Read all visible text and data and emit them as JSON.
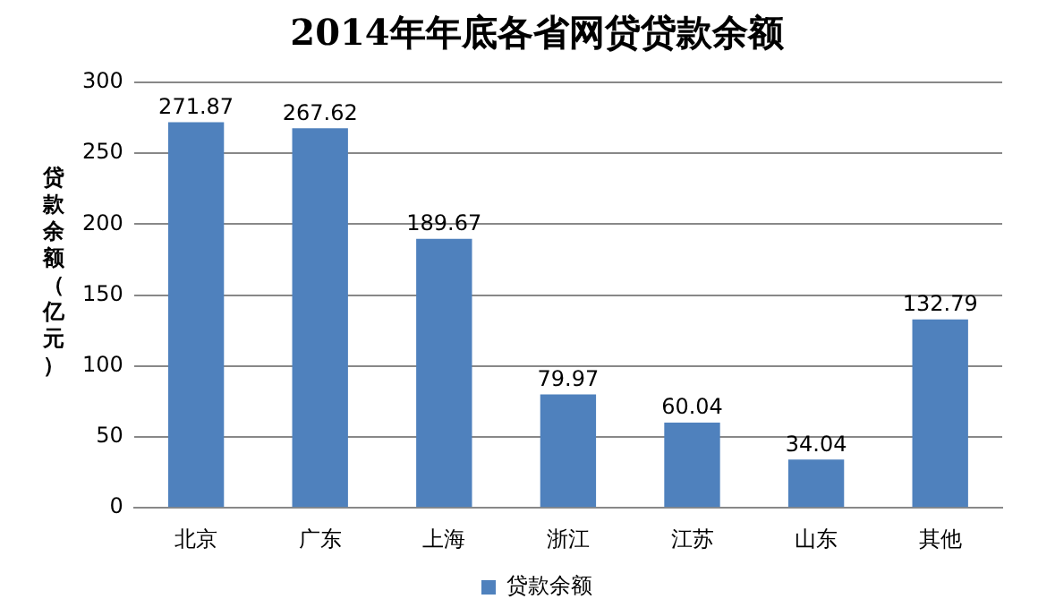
{
  "chart_data": {
    "type": "bar",
    "title": "2014年年底各省网贷贷款余额",
    "ylabel": "贷款余额（亿元）",
    "categories": [
      "北京",
      "广东",
      "上海",
      "浙江",
      "江苏",
      "山东",
      "其他"
    ],
    "series": [
      {
        "name": "贷款余额",
        "color": "#4f81bd",
        "values": [
          271.87,
          267.62,
          189.67,
          79.97,
          60.04,
          34.04,
          132.79
        ]
      }
    ],
    "ylim": [
      0,
      300
    ],
    "yticks": [
      0,
      50,
      100,
      150,
      200,
      250,
      300
    ],
    "grid": "y",
    "legend": "bottom",
    "data_labels": true
  }
}
